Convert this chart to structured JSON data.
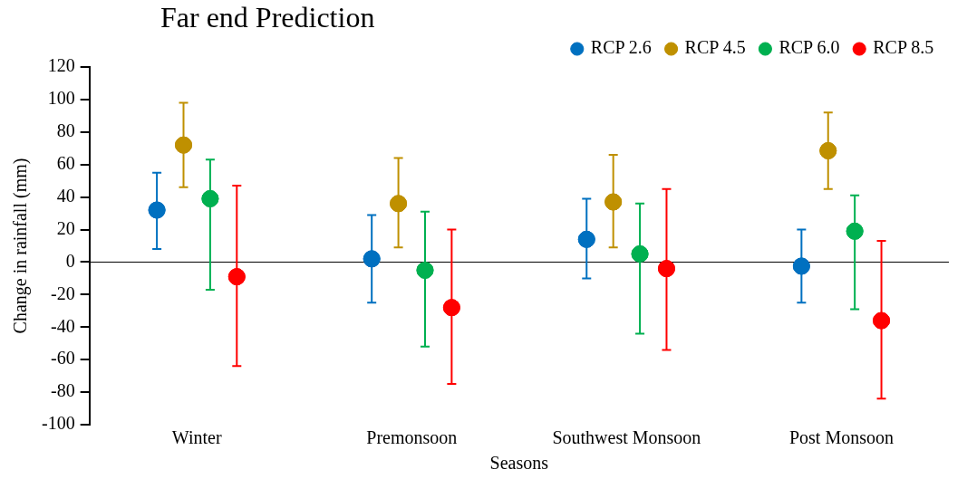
{
  "chart_data": {
    "type": "scatter",
    "title": "Far end Prediction",
    "xlabel": "Seasons",
    "ylabel": "Change in rainfall (mm)",
    "categories": [
      "Winter",
      "Premonsoon",
      "Southwest Monsoon",
      "Post Monsoon"
    ],
    "ylim": [
      -100,
      120
    ],
    "yticks": [
      -100,
      -80,
      -60,
      -40,
      -20,
      0,
      20,
      40,
      60,
      80,
      100,
      120
    ],
    "grid": false,
    "legend": "top right",
    "marker": "circle",
    "ref_lines": [
      {
        "axis": "y",
        "value": 0,
        "color": "#000000"
      }
    ],
    "series": [
      {
        "name": "RCP 2.6",
        "color": "#0070c0",
        "values": [
          32,
          2,
          14,
          -2.5
        ],
        "errors": [
          [
            8,
            55
          ],
          [
            -25,
            29
          ],
          [
            -10,
            39
          ],
          [
            -25,
            20
          ]
        ]
      },
      {
        "name": "RCP 4.5",
        "color": "#bf9000",
        "values": [
          72,
          36,
          37,
          68.5
        ],
        "errors": [
          [
            46,
            98
          ],
          [
            9,
            64
          ],
          [
            9,
            66
          ],
          [
            45,
            92
          ]
        ]
      },
      {
        "name": "RCP 6.0",
        "color": "#00b050",
        "values": [
          39,
          -5,
          5,
          19
        ],
        "errors": [
          [
            -17,
            63
          ],
          [
            -52,
            31
          ],
          [
            -44,
            36
          ],
          [
            -29,
            41
          ]
        ]
      },
      {
        "name": "RCP 8.5",
        "color": "#ff0000",
        "values": [
          -9,
          -28,
          -4,
          -36
        ],
        "errors": [
          [
            -64,
            47
          ],
          [
            -75,
            20
          ],
          [
            -54,
            45
          ],
          [
            -84,
            13
          ]
        ]
      }
    ]
  }
}
